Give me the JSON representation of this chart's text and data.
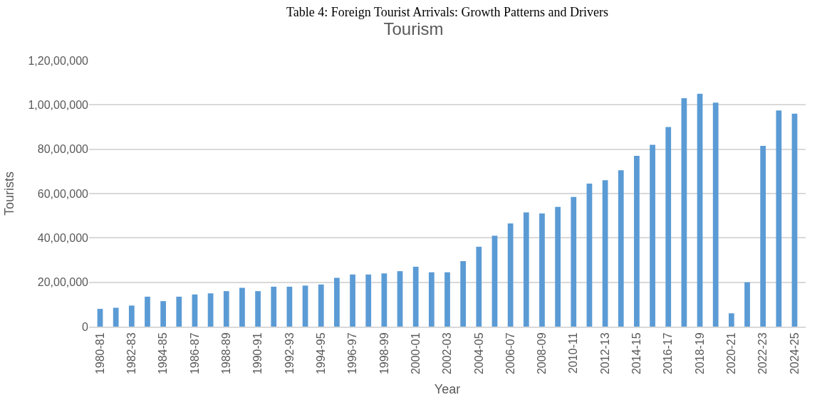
{
  "chart_data": {
    "type": "bar",
    "title": "Tourism",
    "xlabel": "Year",
    "ylabel": "Tourists",
    "annotations": [
      "Table 4: Foreign Tourist Arrivals: Growth Patterns and Drivers"
    ],
    "categories": [
      "1980-81",
      null,
      "1982-83",
      null,
      "1984-85",
      null,
      "1986-87",
      null,
      "1988-89",
      null,
      "1990-91",
      null,
      "1992-93",
      null,
      "1994-95",
      null,
      "1996-97",
      null,
      "1998-99",
      null,
      "2000-01",
      null,
      "2002-03",
      null,
      "2004-05",
      null,
      "2006-07",
      null,
      "2008-09",
      null,
      "2010-11",
      null,
      "2012-13",
      null,
      "2014-15",
      null,
      "2016-17",
      null,
      "2018-19",
      null,
      "2020-21",
      null,
      "2022-23",
      null,
      "2024-25"
    ],
    "values": [
      800000,
      850000,
      950000,
      1350000,
      1150000,
      1350000,
      1450000,
      1500000,
      1600000,
      1750000,
      1600000,
      1800000,
      1800000,
      1850000,
      1900000,
      2200000,
      2350000,
      2350000,
      2400000,
      2500000,
      2700000,
      2450000,
      2450000,
      2950000,
      3600000,
      4100000,
      4650000,
      5150000,
      5100000,
      5400000,
      5850000,
      6450000,
      6600000,
      7050000,
      7700000,
      8200000,
      9000000,
      10300000,
      10500000,
      10100000,
      600000,
      2000000,
      8150000,
      9750000,
      9600000
    ],
    "color": "#5b9bd5",
    "ylim": [
      0,
      12000000
    ],
    "yticks": [
      0,
      {
        "value": 2000000,
        "label": "20,00,000"
      },
      {
        "value": 4000000,
        "label": "40,00,000"
      },
      {
        "value": 6000000,
        "label": "60,00,000"
      },
      {
        "value": 8000000,
        "label": "80,00,000"
      },
      {
        "value": 10000000,
        "label": "1,00,00,000"
      },
      {
        "value": 12000000,
        "label": "1,20,00,000"
      }
    ],
    "grid": "y"
  }
}
